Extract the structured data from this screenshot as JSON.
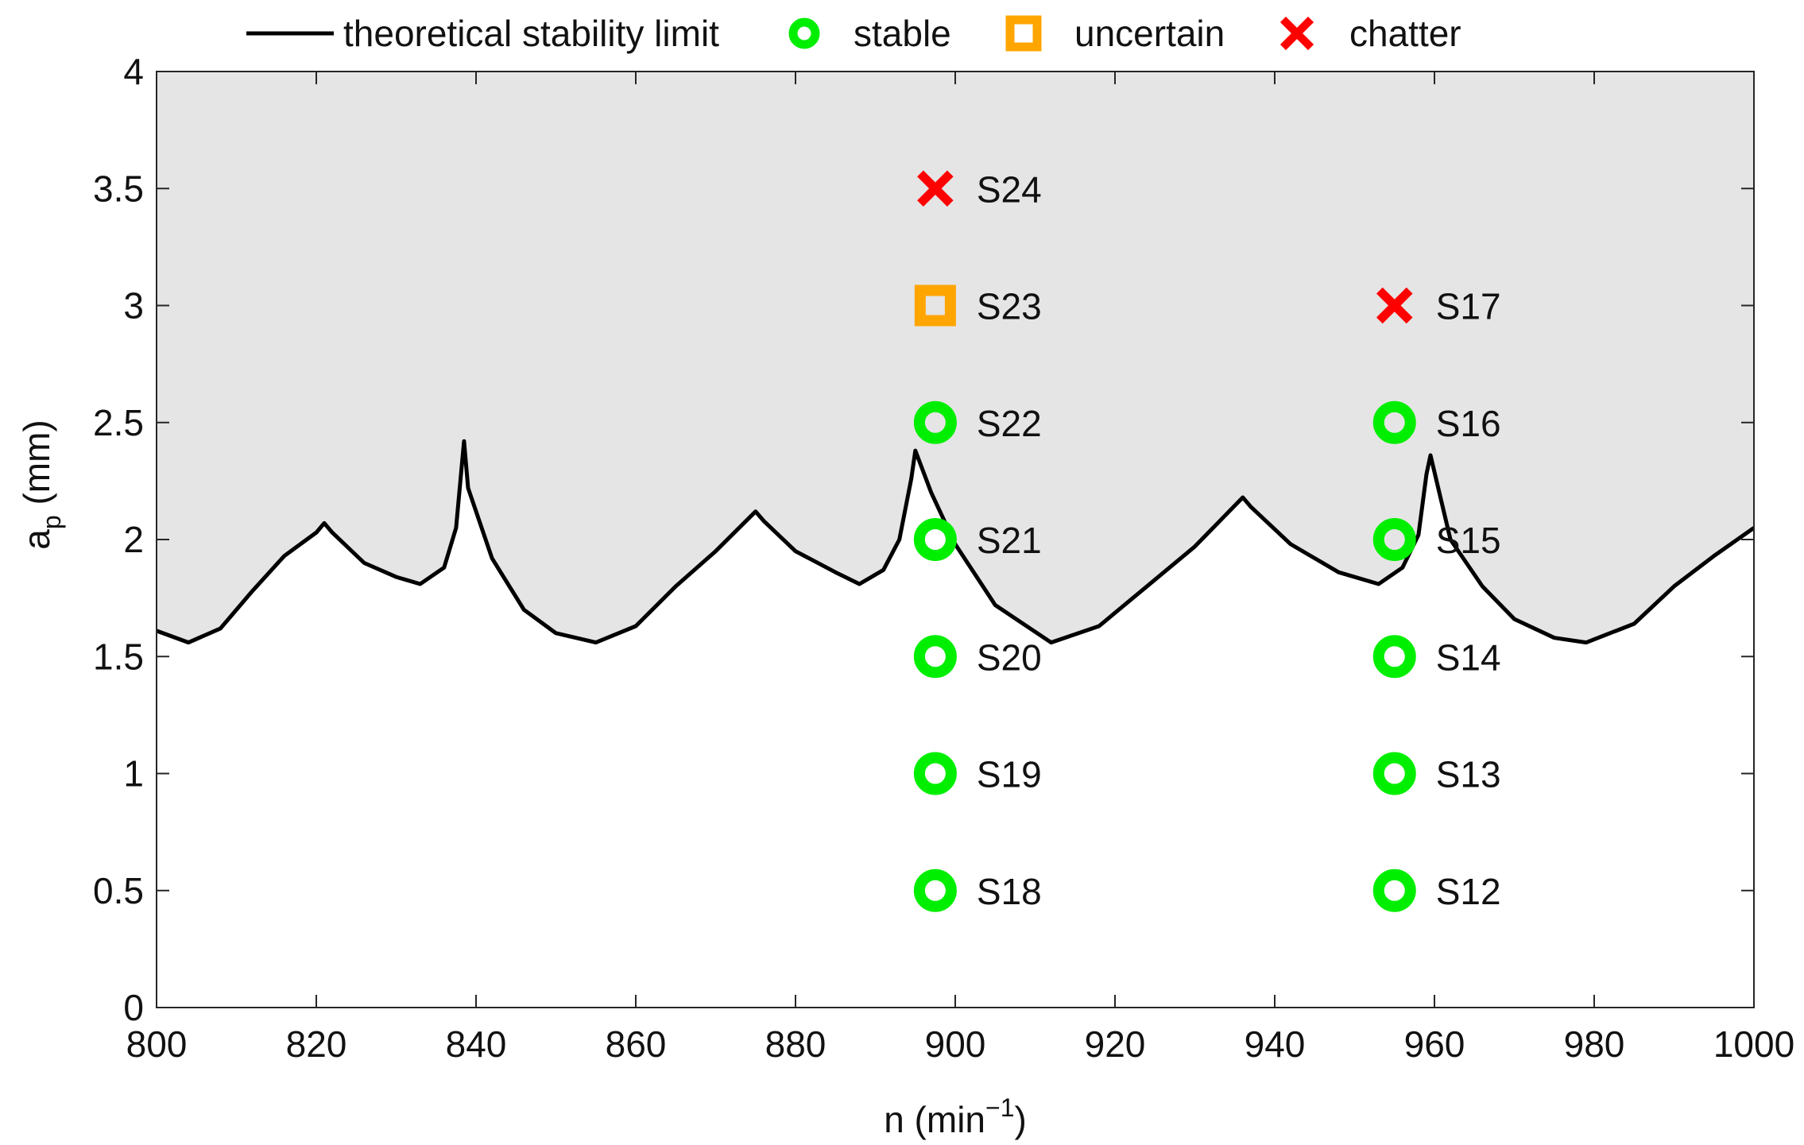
{
  "chart_data": {
    "type": "scatter",
    "xlabel": {
      "main": "n (min",
      "sup": "−1",
      "tail": ")"
    },
    "ylabel": {
      "main": "a",
      "sub": "p",
      "tail": " (mm)"
    },
    "xlim": [
      800,
      1000
    ],
    "ylim": [
      0,
      4
    ],
    "xticks": [
      800,
      820,
      840,
      860,
      880,
      900,
      920,
      940,
      960,
      980,
      1000
    ],
    "yticks": [
      0,
      0.5,
      1,
      1.5,
      2,
      2.5,
      3,
      3.5,
      4
    ],
    "ytick_labels": [
      "0",
      "0.5",
      "1",
      "1.5",
      "2",
      "2.5",
      "3",
      "3.5",
      "4"
    ],
    "grid": false,
    "unstable_region_shading": "#e5e5e5",
    "legend": {
      "position": "top",
      "entries": [
        {
          "key": "limit",
          "label": "theoretical stability limit"
        },
        {
          "key": "stable",
          "label": "stable"
        },
        {
          "key": "uncertain",
          "label": "uncertain"
        },
        {
          "key": "chatter",
          "label": "chatter"
        }
      ]
    },
    "colors": {
      "limit": "#000000",
      "stable": "#00ee00",
      "uncertain": "#ffa500",
      "chatter": "#ff0000"
    },
    "stability_limit": {
      "x": [
        800,
        804,
        808,
        812,
        816,
        820,
        821,
        822,
        826,
        830,
        833,
        836,
        837.5,
        838.5,
        839,
        842,
        846,
        850,
        855,
        860,
        865,
        870,
        875,
        876,
        880,
        885,
        888,
        891,
        893,
        894.5,
        895,
        897,
        900,
        905,
        912,
        918,
        924,
        930,
        936,
        937,
        942,
        948,
        953,
        956,
        958,
        959,
        959.5,
        962,
        966,
        970,
        975,
        979,
        985,
        990,
        995,
        1000
      ],
      "y": [
        1.61,
        1.56,
        1.62,
        1.78,
        1.93,
        2.03,
        2.07,
        2.03,
        1.9,
        1.84,
        1.81,
        1.88,
        2.05,
        2.42,
        2.22,
        1.92,
        1.7,
        1.6,
        1.56,
        1.63,
        1.8,
        1.95,
        2.12,
        2.08,
        1.95,
        1.86,
        1.81,
        1.87,
        2.0,
        2.26,
        2.38,
        2.2,
        1.98,
        1.72,
        1.56,
        1.63,
        1.8,
        1.97,
        2.18,
        2.14,
        1.98,
        1.86,
        1.81,
        1.88,
        2.02,
        2.28,
        2.36,
        2.0,
        1.8,
        1.66,
        1.58,
        1.56,
        1.64,
        1.8,
        1.93,
        2.05
      ]
    },
    "points": [
      {
        "label": "S12",
        "x": 955,
        "y": 0.5,
        "class": "stable"
      },
      {
        "label": "S13",
        "x": 955,
        "y": 1.0,
        "class": "stable"
      },
      {
        "label": "S14",
        "x": 955,
        "y": 1.5,
        "class": "stable"
      },
      {
        "label": "S15",
        "x": 955,
        "y": 2.0,
        "class": "stable"
      },
      {
        "label": "S16",
        "x": 955,
        "y": 2.5,
        "class": "stable"
      },
      {
        "label": "S17",
        "x": 955,
        "y": 3.0,
        "class": "chatter"
      },
      {
        "label": "S18",
        "x": 897.5,
        "y": 0.5,
        "class": "stable"
      },
      {
        "label": "S19",
        "x": 897.5,
        "y": 1.0,
        "class": "stable"
      },
      {
        "label": "S20",
        "x": 897.5,
        "y": 1.5,
        "class": "stable"
      },
      {
        "label": "S21",
        "x": 897.5,
        "y": 2.0,
        "class": "stable"
      },
      {
        "label": "S22",
        "x": 897.5,
        "y": 2.5,
        "class": "stable"
      },
      {
        "label": "S23",
        "x": 897.5,
        "y": 3.0,
        "class": "uncertain"
      },
      {
        "label": "S24",
        "x": 897.5,
        "y": 3.5,
        "class": "chatter"
      }
    ]
  }
}
